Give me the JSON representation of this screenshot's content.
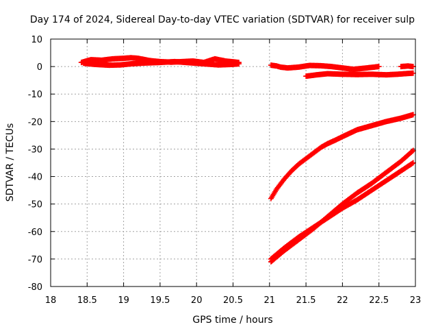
{
  "chart_data": {
    "type": "scatter",
    "title": "Day 174 of 2024, Sidereal Day-to-day VTEC variation (SDTVAR) for receiver sulp",
    "xlabel": "GPS time / hours",
    "ylabel": "SDTVAR / TECUs",
    "xlim": [
      18,
      23
    ],
    "ylim": [
      -80,
      10
    ],
    "xticks": [
      18,
      18.5,
      19,
      19.5,
      20,
      20.5,
      21,
      21.5,
      22,
      22.5,
      23
    ],
    "xtick_labels": [
      "18",
      "18.5",
      "19",
      "19.5",
      "20",
      "20.5",
      "21",
      "21.5",
      "22",
      "22.5",
      "23"
    ],
    "yticks": [
      10,
      0,
      -10,
      -20,
      -30,
      -40,
      -50,
      -60,
      -70,
      -80
    ],
    "ytick_labels": [
      "10",
      "0",
      "-10",
      "-20",
      "-30",
      "-40",
      "-50",
      "-60",
      "-70",
      "-80"
    ],
    "grid": true,
    "marker": "plus",
    "color": "#ff0000",
    "series": [
      {
        "x": [
          18.42,
          18.55,
          18.7,
          18.85,
          19.0,
          19.1,
          19.2,
          19.35,
          19.5,
          19.65,
          19.8,
          19.95,
          20.1,
          20.25,
          20.4,
          20.58
        ],
        "y": [
          1.5,
          2.5,
          2.3,
          2.8,
          3.0,
          3.2,
          3.0,
          2.2,
          1.8,
          1.6,
          1.8,
          2.0,
          1.5,
          2.8,
          2.0,
          1.5
        ]
      },
      {
        "x": [
          18.45,
          18.6,
          18.8,
          18.95,
          19.1,
          19.3,
          19.5,
          19.7,
          19.9,
          20.1,
          20.3,
          20.5,
          20.58
        ],
        "y": [
          1.2,
          0.8,
          0.5,
          0.6,
          1.0,
          1.3,
          1.5,
          1.8,
          1.4,
          1.0,
          0.6,
          0.8,
          1.0
        ]
      },
      {
        "x": [
          21.02,
          21.1,
          21.15,
          21.25,
          21.4,
          21.55,
          21.7,
          21.85,
          22.0,
          22.15,
          22.3,
          22.5
        ],
        "y": [
          0.5,
          0.2,
          -0.2,
          -0.5,
          -0.2,
          0.4,
          0.3,
          0.0,
          -0.5,
          -1.0,
          -0.6,
          0.0
        ]
      },
      {
        "x": [
          21.5,
          21.65,
          21.8,
          22.0,
          22.2,
          22.4,
          22.6,
          22.75,
          22.9,
          22.97
        ],
        "y": [
          -3.5,
          -3.0,
          -2.6,
          -2.8,
          -2.9,
          -2.8,
          -3.0,
          -2.8,
          -2.5,
          -2.4
        ]
      },
      {
        "x": [
          22.8,
          22.9,
          22.97
        ],
        "y": [
          0.0,
          0.2,
          0.0
        ]
      },
      {
        "x": [
          21.02,
          21.1,
          21.2,
          21.3,
          21.4,
          21.5,
          21.6,
          21.7,
          21.8,
          21.9,
          22.0,
          22.2,
          22.4,
          22.6,
          22.8,
          22.97
        ],
        "y": [
          -48.0,
          -44.5,
          -41.0,
          -38.0,
          -35.5,
          -33.5,
          -31.5,
          -29.5,
          -28.0,
          -26.8,
          -25.5,
          -23.0,
          -21.5,
          -20.0,
          -18.8,
          -17.5
        ]
      },
      {
        "x": [
          21.02,
          21.2,
          21.4,
          21.6,
          21.8,
          22.0,
          22.2,
          22.4,
          22.6,
          22.8,
          22.97
        ],
        "y": [
          -71.0,
          -67.0,
          -63.0,
          -59.0,
          -54.5,
          -50.0,
          -46.0,
          -42.5,
          -38.5,
          -34.5,
          -30.5
        ]
      },
      {
        "x": [
          21.02,
          21.2,
          21.4,
          21.6,
          21.8,
          22.0,
          22.2,
          22.4,
          22.6,
          22.8,
          22.97
        ],
        "y": [
          -70.0,
          -66.0,
          -62.0,
          -58.5,
          -55.0,
          -51.5,
          -48.5,
          -45.0,
          -41.5,
          -38.0,
          -35.0
        ]
      }
    ]
  }
}
